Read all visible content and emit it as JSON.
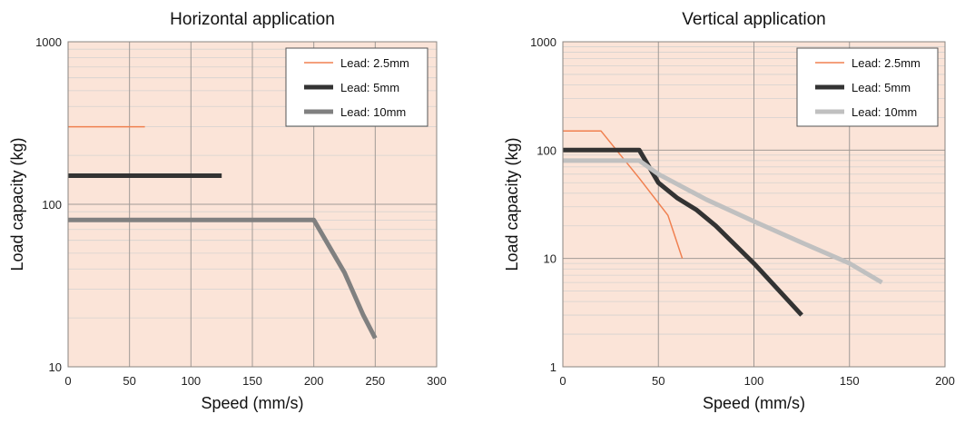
{
  "chart_data": [
    {
      "type": "line",
      "title": "Horizontal application",
      "xlabel": "Speed (mm/s)",
      "ylabel": "Load capacity (kg)",
      "xlim": [
        0,
        300
      ],
      "ylim": [
        10,
        1000
      ],
      "yscale": "log",
      "x_ticks": [
        "0",
        "50",
        "100",
        "150",
        "200",
        "250",
        "300"
      ],
      "y_ticks": [
        "10",
        "100",
        "1000"
      ],
      "grid": true,
      "legend_position": "top-right",
      "series": [
        {
          "name": "Lead: 2.5mm",
          "color": "#f08050",
          "x": [
            0,
            62.5
          ],
          "y": [
            300,
            300
          ]
        },
        {
          "name": "Lead: 5mm",
          "color": "#333333",
          "x": [
            0,
            125
          ],
          "y": [
            150,
            150
          ]
        },
        {
          "name": "Lead: 10mm",
          "color": "#808080",
          "x": [
            0,
            200,
            225,
            240,
            250
          ],
          "y": [
            80,
            80,
            38,
            21,
            15
          ]
        }
      ]
    },
    {
      "type": "line",
      "title": "Vertical application",
      "xlabel": "Speed (mm/s)",
      "ylabel": "Load capacity (kg)",
      "xlim": [
        0,
        200
      ],
      "ylim": [
        1,
        1000
      ],
      "yscale": "log",
      "x_ticks": [
        "0",
        "50",
        "100",
        "150",
        "200"
      ],
      "y_ticks": [
        "1",
        "10",
        "100",
        "1000"
      ],
      "grid": true,
      "legend_position": "top-right",
      "series": [
        {
          "name": "Lead: 2.5mm",
          "color": "#f08050",
          "x": [
            0,
            20,
            40,
            55,
            62.5
          ],
          "y": [
            150,
            150,
            55,
            25,
            10
          ]
        },
        {
          "name": "Lead: 5mm",
          "color": "#333333",
          "x": [
            0,
            40,
            50,
            60,
            70,
            80,
            100,
            125
          ],
          "y": [
            100,
            100,
            50,
            36,
            28,
            20,
            9,
            3
          ]
        },
        {
          "name": "Lead: 10mm",
          "color": "#c0c0c0",
          "x": [
            0,
            40,
            50,
            75,
            100,
            125,
            150,
            167
          ],
          "y": [
            80,
            80,
            60,
            35,
            22,
            14,
            9,
            6
          ]
        }
      ]
    }
  ]
}
